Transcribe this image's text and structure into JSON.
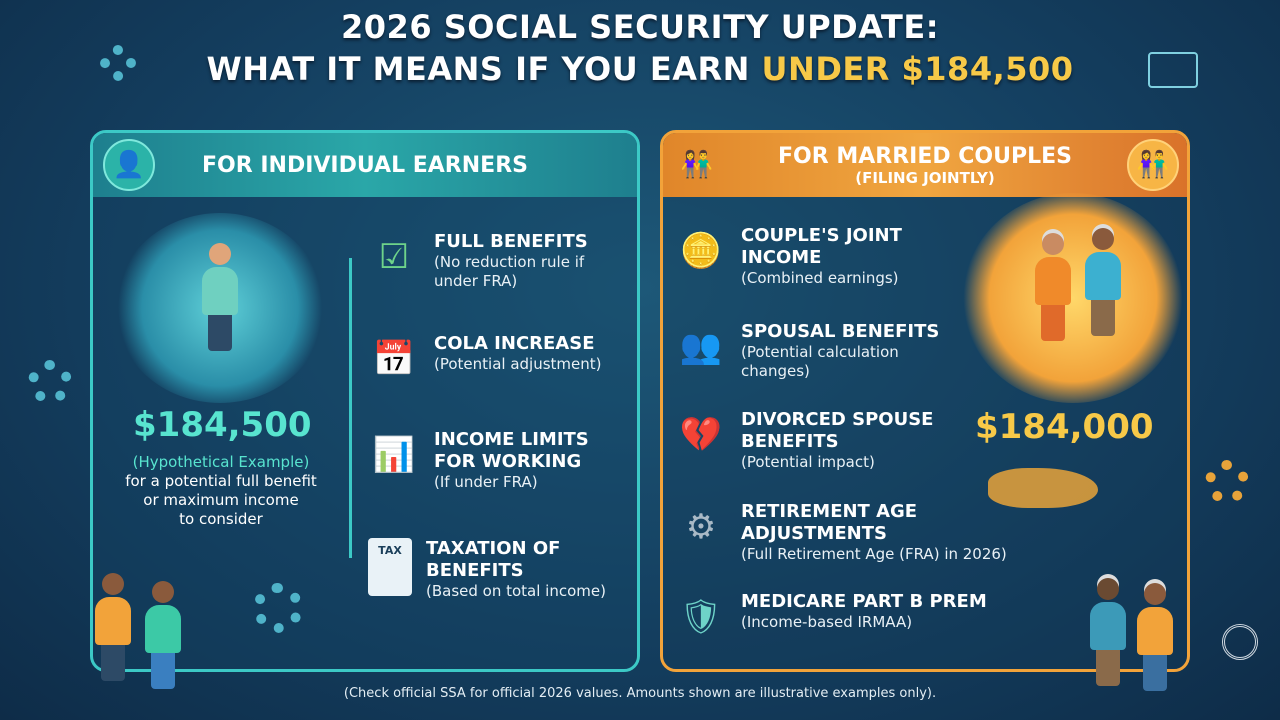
{
  "title": {
    "line1": "2026 SOCIAL SECURITY UPDATE:",
    "line2_prefix": "WHAT IT MEANS IF YOU EARN ",
    "line2_highlight": "UNDER $184,500"
  },
  "individual": {
    "header": "FOR INDIVIDUAL EARNERS",
    "amount": "$184,500",
    "amount_note": "(Hypothetical Example)",
    "amount_desc": [
      "for a potential full benefit",
      "or maximum income",
      "to consider"
    ],
    "items": [
      {
        "icon": "checklist-icon",
        "title": "FULL BENEFITS",
        "desc": "(No reduction rule if under FRA)"
      },
      {
        "icon": "calendar-icon",
        "title": "COLA INCREASE",
        "desc": "(Potential adjustment)"
      },
      {
        "icon": "growth-chart-icon",
        "title": "INCOME LIMITS FOR WORKING",
        "desc": "(If under FRA)"
      },
      {
        "icon": "tax-form-icon",
        "title": "TAXATION OF BENEFITS",
        "desc": "(Based on total income)",
        "icon_text": "TAX"
      }
    ]
  },
  "couples": {
    "header": "FOR MARRIED COUPLES",
    "subheader": "(FILING JOINTLY)",
    "amount": "$184,000",
    "items": [
      {
        "icon": "coins-icon",
        "title": "COUPLE'S JOINT INCOME",
        "desc": "(Combined earnings)"
      },
      {
        "icon": "couple-icon",
        "title": "SPOUSAL BENEFITS",
        "desc": "(Potential calculation changes)"
      },
      {
        "icon": "broken-heart-icon",
        "title": "DIVORCED SPOUSE BENEFITS",
        "desc": "(Potential impact)"
      },
      {
        "icon": "gear-icon",
        "title": "RETIREMENT AGE ADJUSTMENTS",
        "desc": "(Full Retirement Age (FRA) in 2026)"
      },
      {
        "icon": "medical-shield-icon",
        "title": "MEDICARE PART B PREM",
        "desc": "(Income-based IRMAA)"
      }
    ]
  },
  "footer": "(Check official SSA for official 2026 values. Amounts shown are illustrative examples only).",
  "colors": {
    "teal": "#3cc9c6",
    "orange": "#f2a33a",
    "highlight": "#f7c948",
    "background": "#143f60"
  }
}
